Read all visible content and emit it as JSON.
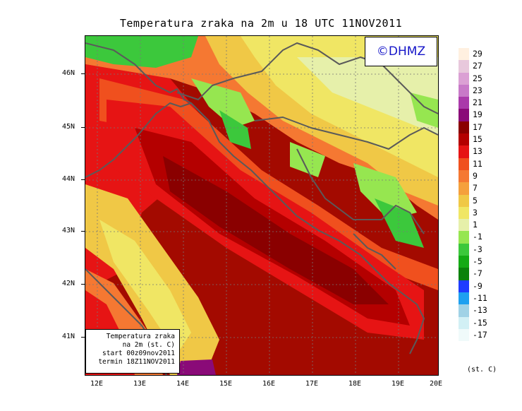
{
  "title": "Temperatura zraka na 2m u 18 UTC 11NOV2011",
  "logo": "©DHMZ",
  "info_box": {
    "line1": "Temperatura zraka",
    "line2": "na 2m (st. C)",
    "line3": "start 00z09nov2011",
    "line4": "termin 18Z11NOV2011"
  },
  "y_ticks": [
    "46N",
    "45N",
    "44N",
    "43N",
    "42N",
    "41N"
  ],
  "x_ticks": [
    "12E",
    "13E",
    "14E",
    "15E",
    "16E",
    "17E",
    "18E",
    "19E",
    "20E"
  ],
  "legend": {
    "unit": "(st. C)",
    "entries": [
      {
        "label": "29",
        "color": "#fff0e0"
      },
      {
        "label": "27",
        "color": "#e8c8dc"
      },
      {
        "label": "25",
        "color": "#dba0d4"
      },
      {
        "label": "23",
        "color": "#c879c8"
      },
      {
        "label": "21",
        "color": "#aa3aaa"
      },
      {
        "label": "19",
        "color": "#8a0a78"
      },
      {
        "label": "17",
        "color": "#8a0000"
      },
      {
        "label": "15",
        "color": "#b40000"
      },
      {
        "label": "13",
        "color": "#e61414"
      },
      {
        "label": "11",
        "color": "#f0501e"
      },
      {
        "label": "9",
        "color": "#f57832"
      },
      {
        "label": "7",
        "color": "#f5a03c"
      },
      {
        "label": "5",
        "color": "#f0c846"
      },
      {
        "label": "3",
        "color": "#f0e664"
      },
      {
        "label": "1",
        "color": "#e6f0aa"
      },
      {
        "label": "-1",
        "color": "#96e650"
      },
      {
        "label": "-3",
        "color": "#3cc83c"
      },
      {
        "label": "-5",
        "color": "#14aa14"
      },
      {
        "label": "-7",
        "color": "#0a820a"
      },
      {
        "label": "-9",
        "color": "#1e3cff"
      },
      {
        "label": "-11",
        "color": "#1ea0f0"
      },
      {
        "label": "-13",
        "color": "#a0d2e6"
      },
      {
        "label": "-15",
        "color": "#d2f0f5"
      },
      {
        "label": "-17",
        "color": "#f0fafa"
      }
    ]
  }
}
